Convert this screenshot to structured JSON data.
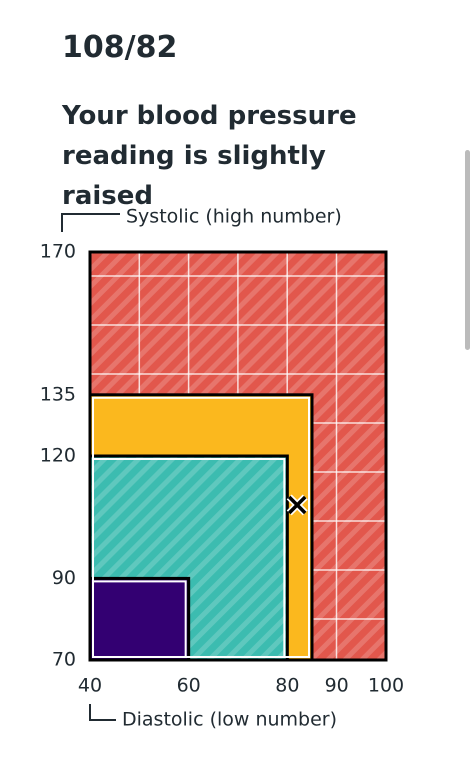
{
  "reading": "108/82",
  "message": "Your blood pressure reading is slightly raised",
  "chart_data": {
    "type": "region",
    "ylabel": "Systolic (high number)",
    "xlabel": "Diastolic (low number)",
    "xlim": [
      40,
      100
    ],
    "ylim": [
      70,
      170
    ],
    "xticks": [
      40,
      60,
      80,
      90,
      100
    ],
    "yticks": [
      70,
      90,
      120,
      135,
      170
    ],
    "regions": [
      {
        "color": "#e2574c",
        "hatch": true,
        "x": [
          40,
          100
        ],
        "y": [
          70,
          170
        ]
      },
      {
        "color": "#fbb81e",
        "hatch": false,
        "x": [
          40,
          85
        ],
        "y": [
          70,
          135
        ]
      },
      {
        "color": "#3cbcb0",
        "hatch": true,
        "x": [
          40,
          80
        ],
        "y": [
          70,
          120
        ]
      },
      {
        "color": "#330072",
        "hatch": false,
        "x": [
          40,
          60
        ],
        "y": [
          70,
          90
        ]
      }
    ],
    "point": {
      "x": 82,
      "y": 108
    }
  }
}
